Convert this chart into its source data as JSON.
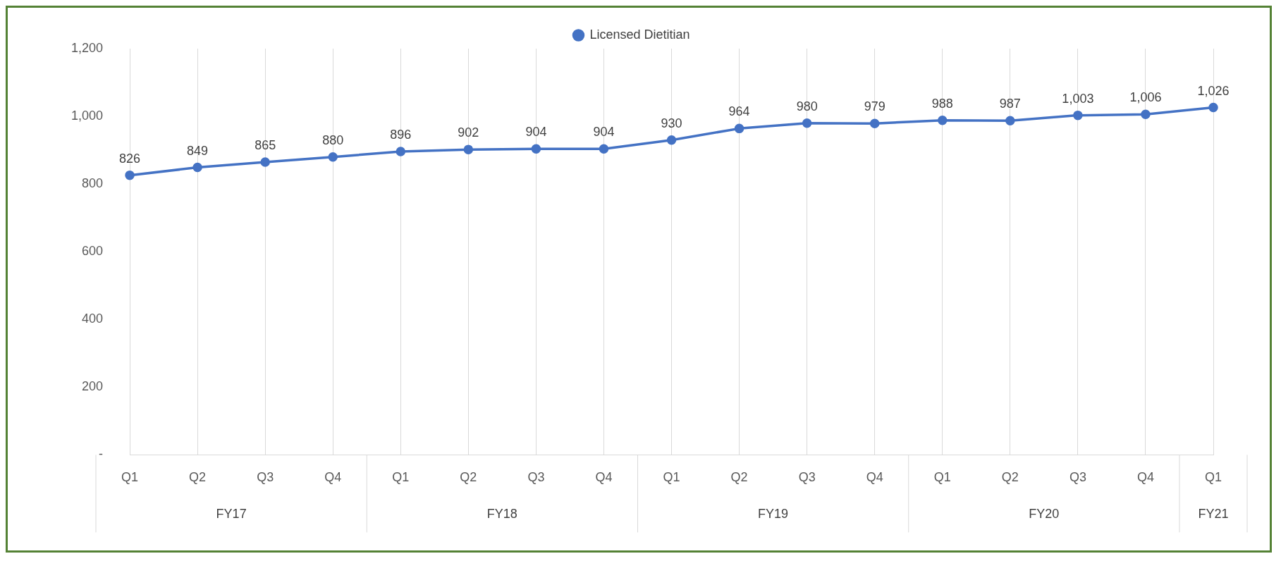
{
  "chart_data": {
    "type": "line",
    "categories": [
      "Q1",
      "Q2",
      "Q3",
      "Q4",
      "Q1",
      "Q2",
      "Q3",
      "Q4",
      "Q1",
      "Q2",
      "Q3",
      "Q4",
      "Q1",
      "Q2",
      "Q3",
      "Q4",
      "Q1"
    ],
    "series": [
      {
        "name": "Licensed Dietitian",
        "color": "#4472c4",
        "values": [
          826,
          849,
          865,
          880,
          896,
          902,
          904,
          904,
          930,
          964,
          980,
          979,
          988,
          987,
          1003,
          1006,
          1026
        ],
        "value_labels": [
          "826",
          "849",
          "865",
          "880",
          "896",
          "902",
          "904",
          "904",
          "930",
          "964",
          "980",
          "979",
          "988",
          "987",
          "1,003",
          "1,006",
          "1,026"
        ]
      }
    ],
    "ylim": [
      0,
      1200
    ],
    "yticks": [
      {
        "value": 0,
        "label": "-"
      },
      200,
      400,
      600,
      800,
      {
        "value": 1000,
        "label": "1,000"
      },
      {
        "value": 1200,
        "label": "1,200"
      }
    ],
    "annotations": [
      "FY17",
      "FY18",
      "FY19",
      "FY20",
      "FY21"
    ],
    "grid": "x",
    "legend": "top",
    "marker": "circle",
    "line_style": "solid"
  }
}
